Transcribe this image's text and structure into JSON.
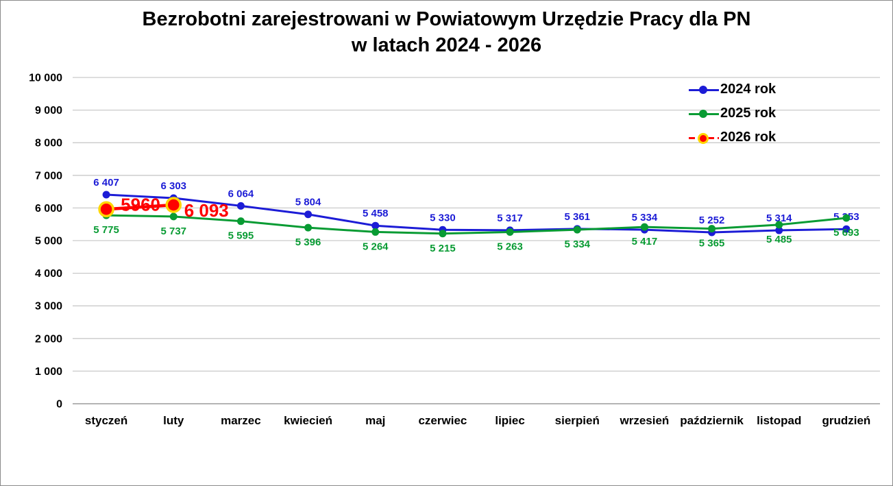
{
  "title": {
    "line1": "Bezrobotni zarejestrowani w Powiatowym Urzędzie Pracy dla PN",
    "line2": "w latach 2024 - 2026"
  },
  "chart_data": {
    "type": "line",
    "categories": [
      "styczeń",
      "luty",
      "marzec",
      "kwiecień",
      "maj",
      "czerwiec",
      "lipiec",
      "sierpień",
      "wrzesień",
      "październik",
      "listopad",
      "grudzień"
    ],
    "series": [
      {
        "name": "2024 rok",
        "color": "#1C1CD6",
        "values": [
          6407,
          6303,
          6064,
          5804,
          5458,
          5330,
          5317,
          5361,
          5334,
          5252,
          5314,
          5353
        ],
        "labels": [
          "6 407",
          "6 303",
          "6 064",
          "5 804",
          "5 458",
          "5 330",
          "5 317",
          "5 361",
          "5 334",
          "5 252",
          "5 314",
          "5 353"
        ]
      },
      {
        "name": "2025 rok",
        "color": "#089B33",
        "values": [
          5775,
          5737,
          5595,
          5396,
          5264,
          5215,
          5263,
          5334,
          5417,
          5365,
          5485,
          5693
        ],
        "labels": [
          "5 775",
          "5 737",
          "5 595",
          "5 396",
          "5 264",
          "5 215",
          "5 263",
          "5 334",
          "5 417",
          "5 365",
          "5 485",
          "5 693"
        ]
      },
      {
        "name": "2026 rok",
        "color": "#FE0000",
        "marker_ring_color": "#FFD500",
        "line_style": "dashed",
        "values": [
          5960,
          6093
        ],
        "labels": [
          "5960",
          "6 093"
        ]
      }
    ],
    "title": "Bezrobotni zarejestrowani w Powiatowym Urzędzie Pracy dla PN w latach 2024 - 2026",
    "xlabel": "",
    "ylabel": "",
    "ylim": [
      0,
      10000
    ],
    "ytick_step": 1000,
    "ytick_labels": [
      "0",
      "1 000",
      "2 000",
      "3 000",
      "4 000",
      "5 000",
      "6 000",
      "7 000",
      "8 000",
      "9 000",
      "10 000"
    ],
    "grid": true,
    "legend_position": "top-right",
    "grid_color": "#c9c9c9",
    "axis_color": "#9b9b9b"
  }
}
